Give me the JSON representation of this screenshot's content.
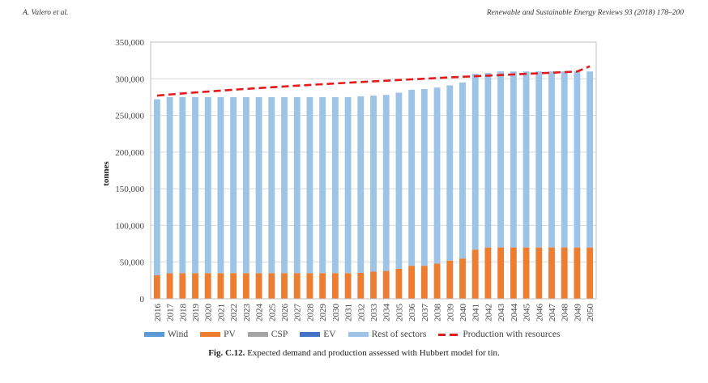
{
  "header": {
    "left": "A. Valero et al.",
    "right": "Renewable and Sustainable Energy Reviews 93 (2018) 178–200"
  },
  "caption": {
    "label": "Fig. C.12.",
    "text": " Expected demand and production assessed with Hubbert model for tin."
  },
  "chart_data": {
    "type": "bar",
    "stacked": true,
    "title": "",
    "xlabel": "",
    "ylabel": "tonnes",
    "ylim": [
      0,
      350000
    ],
    "yticks": [
      0,
      50000,
      100000,
      150000,
      200000,
      250000,
      300000,
      350000
    ],
    "ytick_labels": [
      "0",
      "50,000",
      "100,000",
      "150,000",
      "200,000",
      "250,000",
      "300,000",
      "350,000"
    ],
    "grid": true,
    "legend_position": "bottom",
    "categories": [
      "2016",
      "2017",
      "2018",
      "2019",
      "2020",
      "2021",
      "2022",
      "2023",
      "2024",
      "2025",
      "2026",
      "2027",
      "2028",
      "2029",
      "2030",
      "2031",
      "2032",
      "2033",
      "2034",
      "2035",
      "2036",
      "2037",
      "2038",
      "2039",
      "2040",
      "2041",
      "2042",
      "2043",
      "2044",
      "2045",
      "2046",
      "2047",
      "2048",
      "2049",
      "2050"
    ],
    "series": [
      {
        "name": "Wind",
        "type": "bar",
        "color": "#5b9bd5",
        "values": [
          0,
          0,
          0,
          0,
          0,
          0,
          0,
          0,
          0,
          0,
          0,
          0,
          0,
          0,
          0,
          0,
          0,
          0,
          0,
          0,
          0,
          0,
          0,
          0,
          0,
          0,
          0,
          0,
          0,
          0,
          0,
          0,
          0,
          0,
          0
        ]
      },
      {
        "name": "PV",
        "type": "bar",
        "color": "#ed7d31",
        "values": [
          32000,
          35000,
          35000,
          35000,
          35000,
          35000,
          35000,
          35000,
          35000,
          35000,
          35000,
          35000,
          35000,
          35000,
          35000,
          35000,
          35500,
          37000,
          38000,
          41000,
          45000,
          45000,
          48000,
          52000,
          55000,
          67000,
          70000,
          70000,
          70000,
          70000,
          70000,
          70000,
          70000,
          70000,
          70000
        ]
      },
      {
        "name": "CSP",
        "type": "bar",
        "color": "#a5a5a5",
        "values": [
          0,
          0,
          0,
          0,
          0,
          0,
          0,
          0,
          0,
          0,
          0,
          0,
          0,
          0,
          0,
          0,
          0,
          0,
          0,
          0,
          0,
          0,
          0,
          0,
          0,
          0,
          0,
          0,
          0,
          0,
          0,
          0,
          0,
          0,
          0
        ]
      },
      {
        "name": "EV",
        "type": "bar",
        "color": "#4472c4",
        "values": [
          0,
          0,
          0,
          0,
          0,
          0,
          0,
          0,
          0,
          0,
          0,
          0,
          0,
          0,
          0,
          0,
          0,
          0,
          0,
          0,
          0,
          0,
          0,
          0,
          0,
          0,
          0,
          0,
          0,
          0,
          0,
          0,
          0,
          0,
          0
        ]
      },
      {
        "name": "Rest of sectors",
        "type": "bar",
        "color": "#9dc3e6",
        "values": [
          240000,
          240000,
          240000,
          240000,
          240000,
          240000,
          240000,
          240000,
          240000,
          240000,
          240000,
          240000,
          240000,
          240000,
          240000,
          240000,
          240500,
          240000,
          240000,
          240000,
          240000,
          241000,
          240000,
          239000,
          240000,
          240000,
          238000,
          240000,
          240000,
          240000,
          240000,
          240000,
          240000,
          240000,
          240000
        ]
      },
      {
        "name": "Production with resources",
        "type": "line",
        "style": "dashed",
        "color": "#e31a1c",
        "values": [
          277000,
          278500,
          280000,
          281300,
          282600,
          283800,
          285000,
          286200,
          287300,
          288400,
          289500,
          290600,
          291600,
          292600,
          293600,
          294600,
          295600,
          296500,
          297400,
          298300,
          299200,
          300100,
          301000,
          301900,
          302700,
          303500,
          304300,
          305100,
          305900,
          306700,
          307500,
          308300,
          309100,
          309900,
          317000
        ]
      }
    ]
  }
}
